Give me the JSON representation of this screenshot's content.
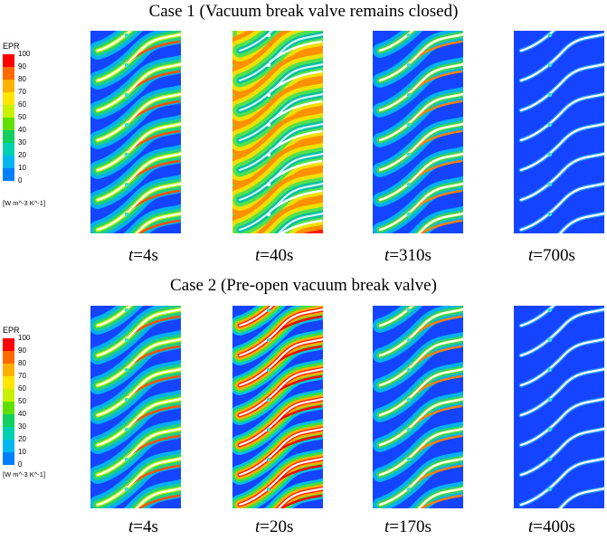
{
  "case1": {
    "title": "Case 1 (Vacuum break valve remains closed)",
    "times": [
      "4s",
      "40s",
      "310s",
      "700s"
    ]
  },
  "case2": {
    "title": "Case 2 (Pre-open vacuum break valve)",
    "times": [
      "4s",
      "20s",
      "170s",
      "400s"
    ]
  },
  "time_prefix": "t",
  "legend": {
    "title": "EPR",
    "ticks": [
      "100",
      "90",
      "80",
      "70",
      "60",
      "50",
      "40",
      "30",
      "20",
      "10",
      "0"
    ],
    "unit": "[W m^-3 K^-1]",
    "colors": [
      "#ff0000",
      "#ff6a00",
      "#ffb000",
      "#ffe600",
      "#c8f000",
      "#5fe000",
      "#10d060",
      "#00d0b0",
      "#00b8f0",
      "#0080ff",
      "#1444ff"
    ]
  },
  "panels": {
    "case1": [
      "low",
      "high",
      "mid",
      "minimal"
    ],
    "case2": [
      "low",
      "midhigh",
      "mid",
      "minimal"
    ]
  }
}
